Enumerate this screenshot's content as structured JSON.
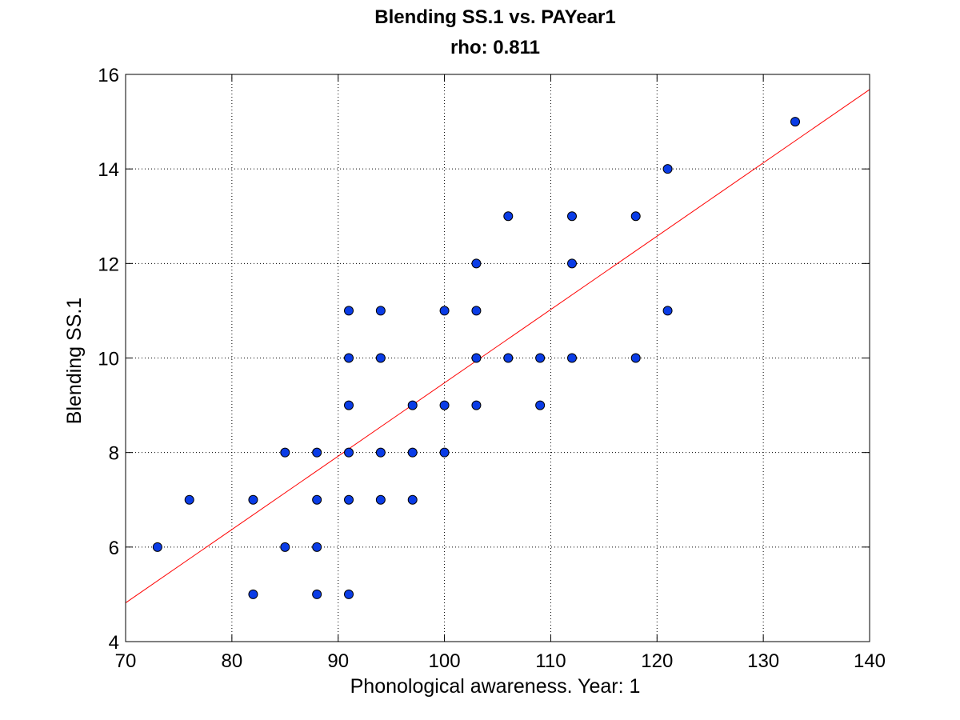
{
  "chart_data": {
    "type": "scatter",
    "title": "Blending SS.1 vs. PAYear1",
    "subtitle": "rho: 0.811",
    "xlabel": "Phonological awareness. Year: 1",
    "ylabel": "Blending SS.1",
    "xlim": [
      70,
      140
    ],
    "ylim": [
      4,
      16
    ],
    "xticks": [
      70,
      80,
      90,
      100,
      110,
      120,
      130,
      140
    ],
    "yticks": [
      4,
      6,
      8,
      10,
      12,
      14,
      16
    ],
    "grid": true,
    "colors": {
      "points": "#0a3ce6",
      "fit_line": "#ff0000"
    },
    "points": [
      [
        73,
        6
      ],
      [
        76,
        7
      ],
      [
        82,
        7
      ],
      [
        82,
        5
      ],
      [
        85,
        8
      ],
      [
        85,
        6
      ],
      [
        88,
        8
      ],
      [
        88,
        7
      ],
      [
        88,
        6
      ],
      [
        88,
        5
      ],
      [
        91,
        11
      ],
      [
        91,
        10
      ],
      [
        91,
        9
      ],
      [
        91,
        8
      ],
      [
        91,
        7
      ],
      [
        91,
        5
      ],
      [
        94,
        11
      ],
      [
        94,
        10
      ],
      [
        94,
        8
      ],
      [
        94,
        7
      ],
      [
        97,
        9
      ],
      [
        97,
        8
      ],
      [
        97,
        7
      ],
      [
        100,
        11
      ],
      [
        100,
        9
      ],
      [
        100,
        8
      ],
      [
        103,
        12
      ],
      [
        103,
        11
      ],
      [
        103,
        10
      ],
      [
        103,
        9
      ],
      [
        106,
        13
      ],
      [
        106,
        10
      ],
      [
        109,
        10
      ],
      [
        109,
        9
      ],
      [
        112,
        13
      ],
      [
        112,
        12
      ],
      [
        112,
        10
      ],
      [
        118,
        13
      ],
      [
        118,
        10
      ],
      [
        121,
        14
      ],
      [
        121,
        11
      ],
      [
        133,
        15
      ]
    ],
    "fit_line": {
      "x": [
        70,
        140
      ],
      "y": [
        4.82,
        15.68
      ]
    }
  }
}
